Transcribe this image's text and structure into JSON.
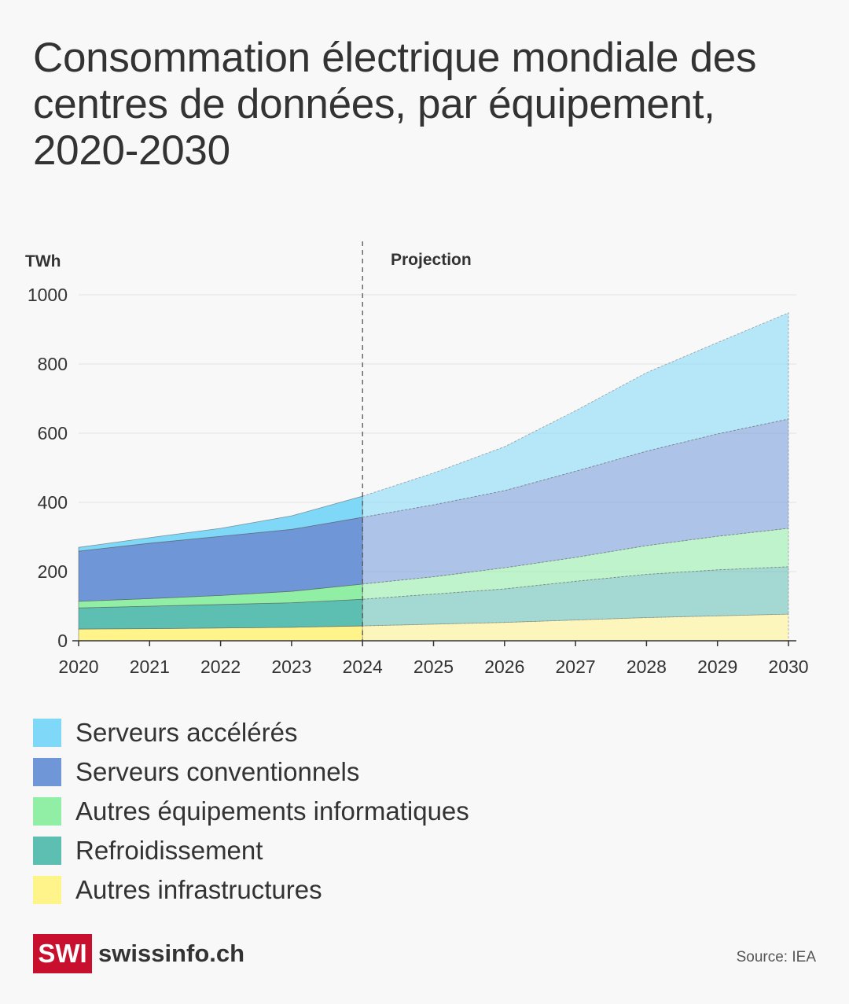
{
  "title": "Consommation électrique mondiale des centres de données, par équipement, 2020-2030",
  "source": "Source: IEA",
  "logo": {
    "mark": "SWI",
    "site": "swissinfo.ch",
    "color": "#c8102e"
  },
  "chart_data": {
    "type": "area",
    "stacked": true,
    "ylabel": "TWh",
    "annotation": "Projection",
    "projection_start": 2024,
    "x": [
      2020,
      2021,
      2022,
      2023,
      2024,
      2025,
      2026,
      2027,
      2028,
      2029,
      2030
    ],
    "xticks": [
      "2020",
      "2021",
      "2022",
      "2023",
      "2024",
      "2025",
      "2026",
      "2027",
      "2028",
      "2029",
      "2030"
    ],
    "yticks": [
      "0",
      "200",
      "400",
      "600",
      "800",
      "1000"
    ],
    "ylim": [
      0,
      1000
    ],
    "grid": true,
    "legend_placement": "bottom",
    "series": [
      {
        "name": "Autres infrastructures",
        "color": "#fff48a",
        "values": [
          34,
          35,
          37,
          39,
          43,
          48,
          53,
          60,
          67,
          72,
          77
        ]
      },
      {
        "name": "Refroidissement",
        "color": "#5dbfb2",
        "values": [
          61,
          65,
          68,
          71,
          77,
          87,
          97,
          112,
          125,
          133,
          137
        ]
      },
      {
        "name": "Autres équipements informatiques",
        "color": "#90efa5",
        "values": [
          19,
          22,
          26,
          33,
          44,
          50,
          61,
          69,
          83,
          97,
          111
        ]
      },
      {
        "name": "Serveurs conventionnels",
        "color": "#6f97d8",
        "values": [
          145,
          160,
          171,
          179,
          193,
          208,
          223,
          249,
          273,
          296,
          316
        ]
      },
      {
        "name": "Serveurs accélérés",
        "color": "#7fd8f8",
        "values": [
          11,
          16,
          23,
          39,
          61,
          92,
          127,
          175,
          227,
          264,
          307
        ]
      }
    ]
  }
}
